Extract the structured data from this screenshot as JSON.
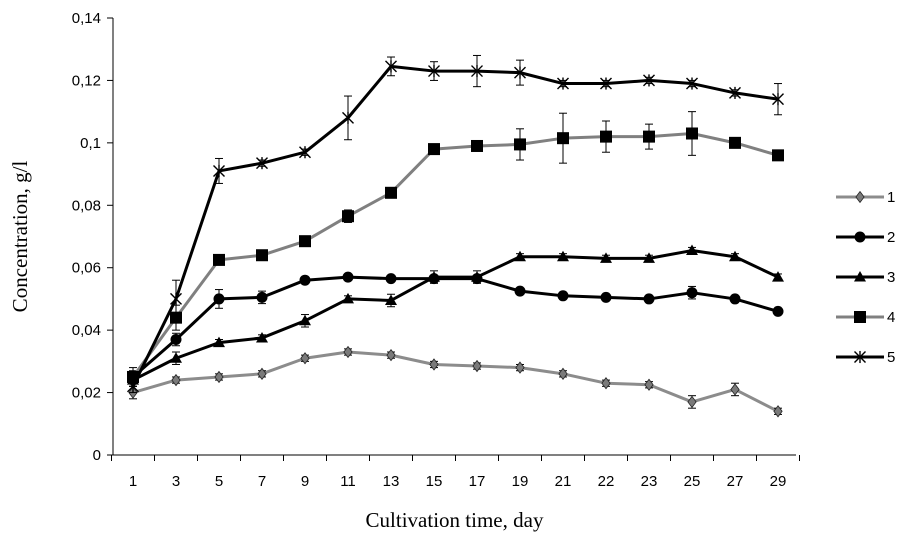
{
  "chart_data": {
    "type": "line",
    "xlabel": "Cultivation time, day",
    "ylabel": "Concentration, g/l",
    "ylim": [
      0,
      0.14
    ],
    "y_ticks": [
      "0",
      "0,02",
      "0,04",
      "0,06",
      "0,08",
      "0,1",
      "0,12",
      "0,14"
    ],
    "categories": [
      "1",
      "3",
      "5",
      "7",
      "9",
      "11",
      "13",
      "15",
      "17",
      "19",
      "21",
      "22",
      "23",
      "25",
      "27",
      "29"
    ],
    "grid": false,
    "legend_position": "right",
    "series": [
      {
        "name": "1",
        "marker": "diamond",
        "line_color": "#8c8c8c",
        "values": [
          0.02,
          0.024,
          0.025,
          0.026,
          0.031,
          0.033,
          0.032,
          0.029,
          0.0285,
          0.028,
          0.026,
          0.023,
          0.0225,
          0.017,
          0.021,
          0.014
        ],
        "errors": [
          0.002,
          0.001,
          0.001,
          0.001,
          0.001,
          0.001,
          0.001,
          0.001,
          0.001,
          0.001,
          0.001,
          0.001,
          0.001,
          0.002,
          0.002,
          0.001
        ]
      },
      {
        "name": "2",
        "marker": "circle",
        "line_color": "#000000",
        "values": [
          0.025,
          0.037,
          0.05,
          0.0505,
          0.056,
          0.057,
          0.0565,
          0.0565,
          0.0565,
          0.0525,
          0.051,
          0.0505,
          0.05,
          0.052,
          0.05,
          0.046
        ],
        "errors": [
          0.002,
          0.002,
          0.003,
          0.002,
          0.001,
          0.001,
          0.001,
          0.001,
          0.001,
          0.001,
          0.001,
          0.001,
          0.001,
          0.002,
          0.001,
          0.001
        ]
      },
      {
        "name": "3",
        "marker": "triangle",
        "line_color": "#000000",
        "values": [
          0.024,
          0.031,
          0.036,
          0.0375,
          0.043,
          0.05,
          0.0495,
          0.057,
          0.057,
          0.0635,
          0.0635,
          0.063,
          0.063,
          0.0655,
          0.0635,
          0.057
        ],
        "errors": [
          0.002,
          0.002,
          0.001,
          0.001,
          0.002,
          0.001,
          0.002,
          0.002,
          0.002,
          0.001,
          0.001,
          0.001,
          0.001,
          0.001,
          0.001,
          0.001
        ]
      },
      {
        "name": "4",
        "marker": "square",
        "line_color": "#808080",
        "values": [
          0.025,
          0.044,
          0.0625,
          0.064,
          0.0685,
          0.0765,
          0.084,
          0.098,
          0.099,
          0.0995,
          0.1015,
          0.102,
          0.102,
          0.103,
          0.1,
          0.096
        ],
        "errors": [
          0.003,
          0.004,
          0.001,
          0.001,
          0.001,
          0.002,
          0.001,
          0.001,
          0.001,
          0.005,
          0.008,
          0.005,
          0.004,
          0.007,
          0.001,
          0.001
        ]
      },
      {
        "name": "5",
        "marker": "asterisk",
        "line_color": "#000000",
        "values": [
          0.022,
          0.05,
          0.091,
          0.0935,
          0.097,
          0.108,
          0.1245,
          0.123,
          0.123,
          0.1225,
          0.119,
          0.119,
          0.12,
          0.119,
          0.116,
          0.114
        ],
        "errors": [
          0.002,
          0.006,
          0.004,
          0.001,
          0.001,
          0.007,
          0.003,
          0.003,
          0.005,
          0.004,
          0.001,
          0.001,
          0.001,
          0.001,
          0.001,
          0.005
        ]
      }
    ]
  }
}
